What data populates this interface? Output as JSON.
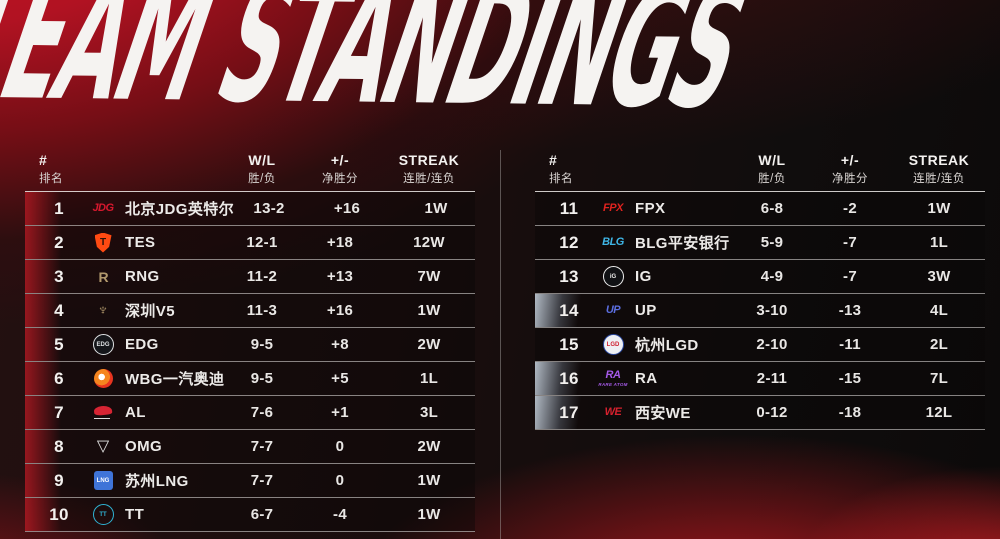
{
  "page": {
    "title": "TEAM STANDINGS"
  },
  "table": {
    "headers": {
      "rank_en": "#",
      "rank_zh": "排名",
      "wl_en": "W/L",
      "wl_zh": "胜/负",
      "pm_en": "+/-",
      "pm_zh": "净胜分",
      "streak_en": "STREAK",
      "streak_zh": "连胜/连负"
    }
  },
  "colors": {
    "background_red": "#c81626",
    "row_accent_red": "#cd1c26",
    "row_accent_steel": "#cdd8e4",
    "divider": "#d7d4d2",
    "text": "#eceae8"
  },
  "standings": {
    "left": [
      {
        "rank": "1",
        "team": "北京JDG英特尔",
        "wl": "13-2",
        "pm": "+16",
        "streak": "1W",
        "accent": "red",
        "logo": {
          "icon": "jdg-logo",
          "style": "text",
          "text": "JDG",
          "color": "#d7182e"
        }
      },
      {
        "rank": "2",
        "team": "TES",
        "wl": "12-1",
        "pm": "+18",
        "streak": "12W",
        "accent": "red",
        "logo": {
          "icon": "tes-logo",
          "style": "shield",
          "text": "T",
          "color": "#ff4a12"
        }
      },
      {
        "rank": "3",
        "team": "RNG",
        "wl": "11-2",
        "pm": "+13",
        "streak": "7W",
        "accent": "red",
        "logo": {
          "icon": "rng-logo",
          "style": "mark",
          "text": "R",
          "color": "#b2996d"
        }
      },
      {
        "rank": "4",
        "team": "深圳V5",
        "wl": "11-3",
        "pm": "+16",
        "streak": "1W",
        "accent": "red",
        "logo": {
          "icon": "v5-logo",
          "style": "glyph",
          "text": "♆",
          "color": "#b2996d"
        }
      },
      {
        "rank": "5",
        "team": "EDG",
        "wl": "9-5",
        "pm": "+8",
        "streak": "2W",
        "accent": "red",
        "logo": {
          "icon": "edg-logo",
          "style": "circle",
          "text": "EDG",
          "color": "#dfe2e4",
          "bg": "#15161a"
        }
      },
      {
        "rank": "6",
        "team": "WBG一汽奥迪",
        "wl": "9-5",
        "pm": "+5",
        "streak": "1L",
        "accent": "red",
        "logo": {
          "icon": "wbg-logo",
          "style": "eye",
          "color": "#f5851f"
        }
      },
      {
        "rank": "7",
        "team": "AL",
        "wl": "7-6",
        "pm": "+1",
        "streak": "3L",
        "accent": "red",
        "logo": {
          "icon": "al-logo",
          "style": "fish",
          "color": "#d62433"
        }
      },
      {
        "rank": "8",
        "team": "OMG",
        "wl": "7-7",
        "pm": "0",
        "streak": "2W",
        "accent": "red",
        "logo": {
          "icon": "omg-logo",
          "style": "glyph",
          "text": "▽",
          "color": "#e3e3e3"
        }
      },
      {
        "rank": "9",
        "team": "苏州LNG",
        "wl": "7-7",
        "pm": "0",
        "streak": "1W",
        "accent": "red",
        "logo": {
          "icon": "lng-logo",
          "style": "square",
          "text": "LNG",
          "color": "#ffffff",
          "bg": "#3f74d8"
        }
      },
      {
        "rank": "10",
        "team": "TT",
        "wl": "6-7",
        "pm": "-4",
        "streak": "1W",
        "accent": "red",
        "logo": {
          "icon": "tt-logo",
          "style": "circle",
          "text": "TT",
          "color": "#2fb3d4"
        }
      }
    ],
    "right": [
      {
        "rank": "11",
        "team": "FPX",
        "wl": "6-8",
        "pm": "-2",
        "streak": "1W",
        "accent": "none",
        "logo": {
          "icon": "fpx-logo",
          "style": "text",
          "text": "FPX",
          "color": "#e0231f"
        }
      },
      {
        "rank": "12",
        "team": "BLG平安银行",
        "wl": "5-9",
        "pm": "-7",
        "streak": "1L",
        "accent": "none",
        "logo": {
          "icon": "blg-logo",
          "style": "text",
          "text": "BLG",
          "color": "#3fb6e6"
        }
      },
      {
        "rank": "13",
        "team": "IG",
        "wl": "4-9",
        "pm": "-7",
        "streak": "3W",
        "accent": "none",
        "logo": {
          "icon": "ig-logo",
          "style": "circle",
          "text": "iG",
          "color": "#ececec",
          "bg": "#101114"
        }
      },
      {
        "rank": "14",
        "team": "UP",
        "wl": "3-10",
        "pm": "-13",
        "streak": "4L",
        "accent": "steel",
        "logo": {
          "icon": "up-logo",
          "style": "text",
          "text": "UP",
          "color": "#5b6ee0"
        }
      },
      {
        "rank": "15",
        "team": "杭州LGD",
        "wl": "2-10",
        "pm": "-11",
        "streak": "2L",
        "accent": "none",
        "logo": {
          "icon": "lgd-logo",
          "style": "circle",
          "text": "LGD",
          "color": "#cf2030",
          "bg": "#eef0f4",
          "border": "#2b49a0"
        }
      },
      {
        "rank": "16",
        "team": "RA",
        "wl": "2-11",
        "pm": "-15",
        "streak": "7L",
        "accent": "steel",
        "logo": {
          "icon": "ra-logo",
          "style": "text",
          "text": "RA",
          "color": "#a55ae8",
          "sub": "RARE ATOM"
        }
      },
      {
        "rank": "17",
        "team": "西安WE",
        "wl": "0-12",
        "pm": "-18",
        "streak": "12L",
        "accent": "steel",
        "logo": {
          "icon": "we-logo",
          "style": "text",
          "text": "WE",
          "color": "#d6212e"
        }
      }
    ]
  }
}
